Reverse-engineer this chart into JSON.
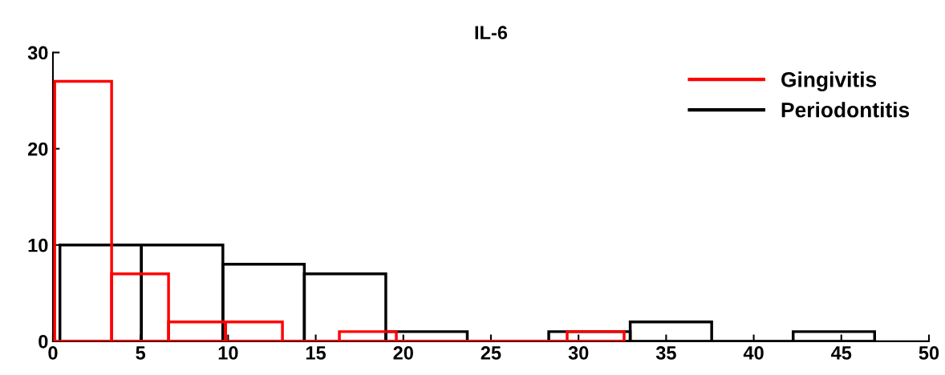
{
  "chart_data": {
    "type": "histogram",
    "title": "IL-6",
    "bins": [
      0.1,
      3.35,
      6.6,
      9.85,
      13.1,
      16.35,
      19.6,
      22.85,
      26.1,
      29.35,
      32.6
    ],
    "series": [
      {
        "name": "Gingivitis",
        "color": "#ff0000",
        "values": [
          27,
          7,
          2,
          2,
          0,
          1,
          0,
          0,
          0,
          1
        ]
      },
      {
        "name": "Periodontitis",
        "color": "#000000",
        "type": "histogram",
        "bins": [
          0.4,
          5.05,
          9.7,
          14.35,
          19.0,
          23.65,
          28.3,
          32.95,
          37.6,
          42.25,
          46.9
        ],
        "values": [
          10,
          10,
          8,
          7,
          1,
          0,
          1,
          2,
          0,
          1
        ]
      }
    ],
    "xlim": [
      0,
      50
    ],
    "xticks": [
      0,
      5,
      10,
      15,
      20,
      25,
      30,
      35,
      40,
      45,
      50
    ],
    "ylim": [
      0,
      30
    ],
    "yticks": [
      0,
      10,
      20,
      30
    ],
    "legend": "top right"
  }
}
